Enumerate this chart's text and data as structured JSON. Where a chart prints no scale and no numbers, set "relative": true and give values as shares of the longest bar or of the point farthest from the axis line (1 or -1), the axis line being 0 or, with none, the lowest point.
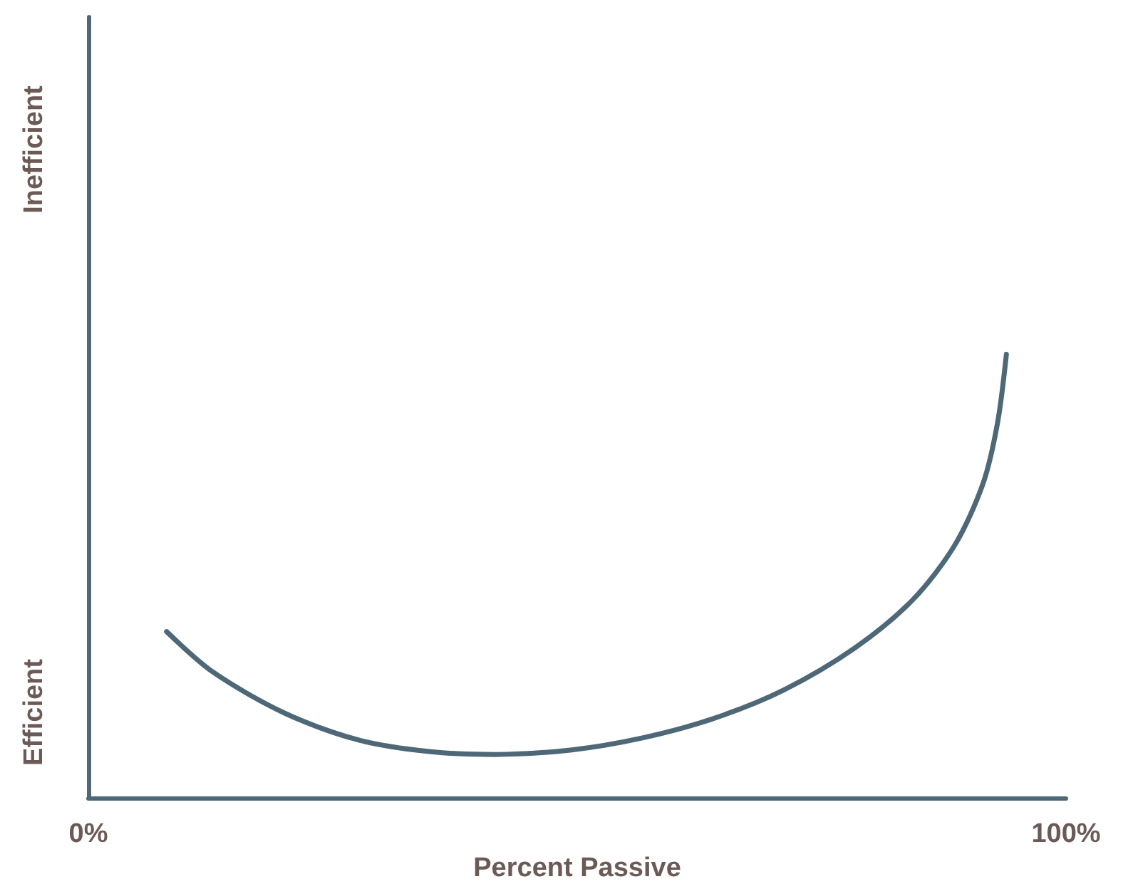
{
  "chart_data": {
    "type": "line",
    "xlabel": "Percent Passive",
    "annotations": [
      "Efficient",
      "Inefficient"
    ],
    "relative": true,
    "xlim": [
      0,
      100
    ],
    "xticks": [
      {
        "value": 0,
        "label": "0%"
      },
      {
        "value": 100,
        "label": "100%"
      }
    ],
    "grid": false,
    "marker": "none",
    "line_style": "solid",
    "x": [
      8.0,
      12.8,
      20.1,
      27.4,
      34.7,
      41.5,
      49.3,
      56.6,
      63.8,
      71.1,
      78.4,
      84.3,
      88.6,
      91.5,
      93.0,
      93.9
    ],
    "series": [
      {
        "color": "#4e6878",
        "values": [
          0.375,
          0.283,
          0.191,
          0.132,
          0.105,
          0.098,
          0.108,
          0.135,
          0.178,
          0.243,
          0.338,
          0.446,
          0.569,
          0.708,
          0.846,
          1.0
        ]
      }
    ]
  }
}
